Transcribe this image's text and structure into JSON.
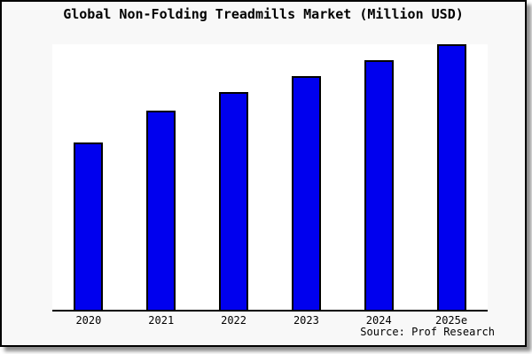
{
  "chart_data": {
    "type": "bar",
    "title": "Global Non-Folding Treadmills Market (Million USD)",
    "categories": [
      "2020",
      "2021",
      "2022",
      "2023",
      "2024",
      "2025e"
    ],
    "values": [
      63,
      75,
      82,
      88,
      94,
      100
    ],
    "values_note": "no y-axis ticks or value labels are shown in the image; values are relative bar heights with the tallest bar (2025e) normalized to 100",
    "xlabel": "",
    "ylabel": "",
    "ylim": [
      0,
      100
    ],
    "grid": false,
    "legend": null,
    "source": "Source: Prof Research",
    "bar_color": "#0000EE",
    "bar_border_color": "#000000"
  },
  "colors": {
    "frame_background": "#F8F8F8",
    "plot_background": "#FFFFFF",
    "frame_border": "#000000",
    "text": "#000000"
  }
}
